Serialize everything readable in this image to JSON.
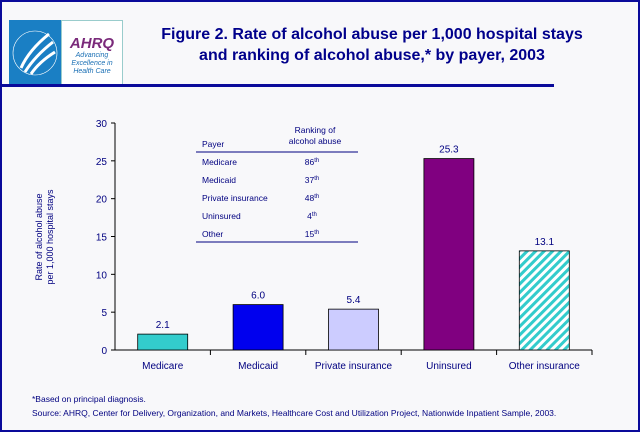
{
  "header": {
    "title_line1": "Figure 2. Rate of alcohol abuse per 1,000 hospital stays",
    "title_line2": "and ranking of alcohol abuse,* by payer, 2003",
    "logo": {
      "text": "AHRQ",
      "tagline": "Advancing Excellence in Health Care"
    }
  },
  "chart_data": {
    "type": "bar",
    "title": "",
    "categories": [
      "Medicare",
      "Medicaid",
      "Private insurance",
      "Uninsured",
      "Other insurance"
    ],
    "values": [
      2.1,
      6.0,
      5.4,
      25.3,
      13.1
    ],
    "data_labels": [
      "2.1",
      "6.0",
      "5.4",
      "25.3",
      "13.1"
    ],
    "colors": [
      "#33cccc",
      "#0000ee",
      "#ccccff",
      "#800080",
      "hatch:#33cccc"
    ],
    "ylabel": "Rate of alcohol abuse per 1,000 hospital stays",
    "ylabel_line1": "Rate of alcohol abuse",
    "ylabel_line2": "per 1,000 hospital stays",
    "ylim": [
      0,
      30
    ],
    "yticks": [
      0,
      5,
      10,
      15,
      20,
      25,
      30
    ],
    "grid": false,
    "inset_table": {
      "headers": [
        "Payer",
        "Ranking of alcohol abuse"
      ],
      "header_rank_line1": "Ranking of",
      "header_rank_line2": "alcohol abuse",
      "rows": [
        [
          "Medicare",
          "86",
          "th"
        ],
        [
          "Medicaid",
          "37",
          "th"
        ],
        [
          "Private insurance",
          "48",
          "th"
        ],
        [
          "Uninsured",
          "4",
          "th"
        ],
        [
          "Other",
          "15",
          "th"
        ]
      ]
    }
  },
  "notes": {
    "footnote": "*Based on principal diagnosis.",
    "source": "Source: AHRQ, Center for Delivery, Organization, and Markets, Healthcare Cost and Utilization Project, Nationwide Inpatient Sample, 2003."
  }
}
